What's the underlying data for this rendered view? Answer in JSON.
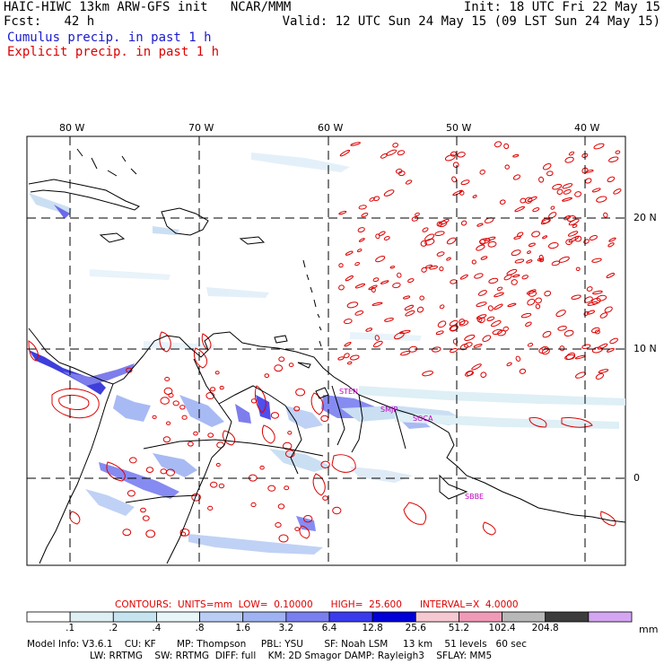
{
  "header": {
    "title": "HAIC-HIWC 13km ARW-GFS init   NCAR/MMM",
    "fcst_label": "Fcst:",
    "fcst_value": "42 h",
    "init": "Init: 18 UTC Fri 22 May 15",
    "valid": "Valid: 12 UTC Sun 24 May 15 (09 LST Sun 24 May 15)",
    "field1": "Cumulus precip. in past 1 h",
    "field2": "Explicit precip. in past 1 h"
  },
  "map": {
    "lon_labels": [
      "80 W",
      "70 W",
      "60 W",
      "50 W",
      "40 W"
    ],
    "lat_labels": [
      "20 N",
      "10 N",
      "0"
    ],
    "stations": [
      "STEN",
      "SMJP",
      "SOCA",
      "SBBE"
    ]
  },
  "contour_info": {
    "text": "CONTOURS:  UNITS=mm  LOW=  0.10000      HIGH=  25.600      INTERVAL=X  4.0000"
  },
  "colorbar": {
    "labels": [
      ".1",
      ".2",
      ".4",
      ".8",
      "1.6",
      "3.2",
      "6.4",
      "12.8",
      "25.6",
      "51.2",
      "102.4",
      "204.8"
    ],
    "units": "mm",
    "colors": [
      "#ffffff",
      "#dff0f5",
      "#c6e4ef",
      "#e8f6fa",
      "#b9cdf5",
      "#9fb3f2",
      "#7a7ff0",
      "#3b3bee",
      "#0000d8",
      "#f5c8d2",
      "#f09ab8",
      "#b8b8b8",
      "#3c3c3c",
      "#d4a6f2"
    ]
  },
  "footer": {
    "line1": "Model Info: V3.6.1    CU: KF       MP: Thompson     PBL: YSU       SF: Noah LSM     13 km    51 levels   60 sec",
    "line2": "LW: RRTMG    SW: RRTMG  DIFF: full    KM: 2D Smagor DAMP: Rayleigh3    SFLAY: MM5"
  }
}
